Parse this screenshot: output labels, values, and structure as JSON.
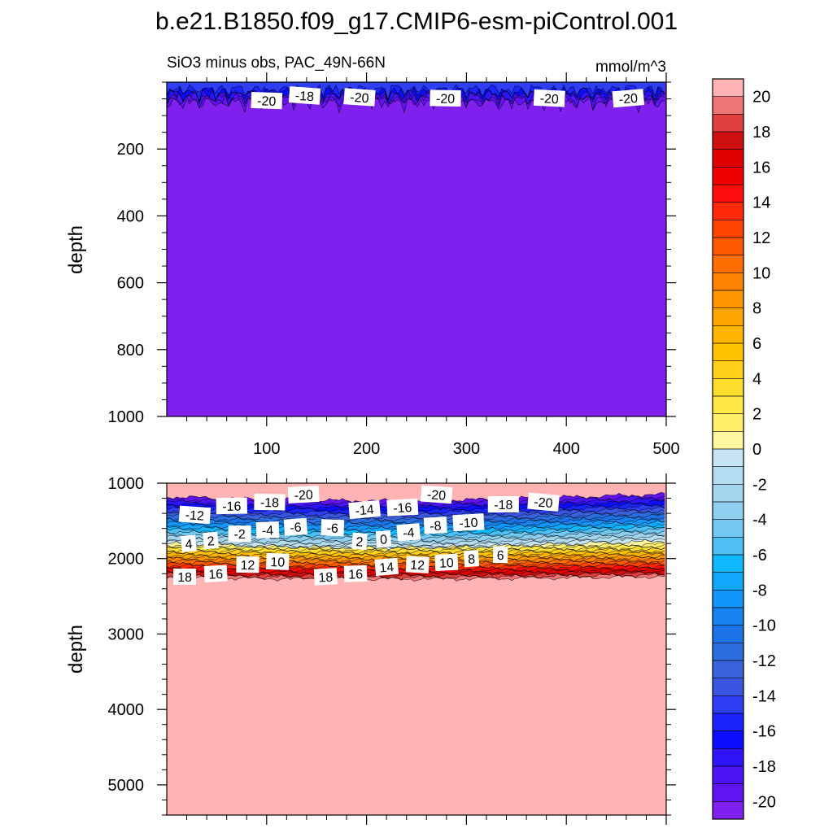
{
  "title": "b.e21.B1850.f09_g17.CMIP6-esm-piControl.001",
  "subtitle_left": "SiO3 minus obs, PAC_49N-66N",
  "subtitle_right": "mmol/m^3",
  "colors": {
    "background": "#ffffff",
    "axis": "#000000",
    "frame": "#000000",
    "contour_line": "#000000",
    "label_box": "#ffffff"
  },
  "colorbar": {
    "labels": [
      "20",
      "18",
      "16",
      "14",
      "12",
      "10",
      "8",
      "6",
      "4",
      "2",
      "0",
      "-2",
      "-4",
      "-6",
      "-8",
      "-10",
      "-12",
      "-14",
      "-16",
      "-18",
      "-20"
    ],
    "levels_top_to_bottom": [
      ">20",
      "19",
      "18",
      "17",
      "16",
      "15",
      "14",
      "13",
      "12",
      "11",
      "10",
      "9",
      "8",
      "7",
      "6",
      "5",
      "4",
      "3",
      "2",
      "1",
      "0",
      "-1",
      "-2",
      "-3",
      "-4",
      "-5",
      "-6",
      "-7",
      "-8",
      "-9",
      "-10",
      "-11",
      "-12",
      "-13",
      "-14",
      "-15",
      "-16",
      "-17",
      "-18",
      "-19",
      "-20",
      "<-20"
    ],
    "colors_top_to_bottom": [
      "#ffb3b3",
      "#f07575",
      "#e04040",
      "#d01010",
      "#e00000",
      "#f00000",
      "#ff0d0d",
      "#ff2a0a",
      "#ff4400",
      "#ff5a00",
      "#ff6e00",
      "#ff8200",
      "#ff9500",
      "#ffa500",
      "#ffb400",
      "#ffc200",
      "#ffcf1a",
      "#ffdd2e",
      "#ffe848",
      "#ffef66",
      "#fff6a0",
      "#c6e4f4",
      "#b2dcf0",
      "#a3d5ee",
      "#8fd0f0",
      "#72c8f2",
      "#4ebff5",
      "#12b8fc",
      "#10a8fc",
      "#1296fa",
      "#1784f2",
      "#1c73e8",
      "#2a6ee0",
      "#3a62dc",
      "#3a56e0",
      "#2d3ff0",
      "#1a24fb",
      "#0c0cff",
      "#2e14fa",
      "#4a14f5",
      "#6214f0",
      "#8020ee"
    ]
  },
  "chart_data": [
    {
      "type": "contour",
      "panel": "upper",
      "xlabel": "",
      "ylabel": "depth",
      "xlim": [
        0,
        500
      ],
      "ylim": [
        1000,
        0
      ],
      "x_tick_labels": [
        "100",
        "200",
        "300",
        "400",
        "500"
      ],
      "x_ticks": [
        100,
        200,
        300,
        400,
        500
      ],
      "y_tick_labels": [
        "200",
        "400",
        "600",
        "800",
        "1000"
      ],
      "y_ticks": [
        200,
        400,
        600,
        800,
        1000
      ],
      "fill_value_below_40m": "< -20",
      "contour_labels": [
        {
          "text": "-20",
          "x": 100,
          "depth": 55
        },
        {
          "text": "-18",
          "x": 138,
          "depth": 40
        },
        {
          "text": "-20",
          "x": 193,
          "depth": 45
        },
        {
          "text": "-20",
          "x": 279,
          "depth": 48
        },
        {
          "text": "-20",
          "x": 383,
          "depth": 48
        },
        {
          "text": "-20",
          "x": 462,
          "depth": 48
        }
      ]
    },
    {
      "type": "contour",
      "panel": "lower",
      "xlabel": "",
      "ylabel": "depth",
      "xlim": [
        0,
        500
      ],
      "ylim": [
        5400,
        1000
      ],
      "y_tick_labels": [
        "1000",
        "2000",
        "3000",
        "4000",
        "5000"
      ],
      "y_ticks": [
        1000,
        2000,
        3000,
        4000,
        5000
      ],
      "bands_depth": {
        "minus20": 1180,
        "zero": 1800,
        "plus20": 2250
      },
      "contour_labels": [
        {
          "text": "-20",
          "x": 137,
          "depth": 1150
        },
        {
          "text": "-18",
          "x": 103,
          "depth": 1250
        },
        {
          "text": "-16",
          "x": 65,
          "depth": 1300
        },
        {
          "text": "-12",
          "x": 28,
          "depth": 1420
        },
        {
          "text": "-20",
          "x": 270,
          "depth": 1150
        },
        {
          "text": "-14",
          "x": 198,
          "depth": 1350
        },
        {
          "text": "-16",
          "x": 236,
          "depth": 1320
        },
        {
          "text": "-18",
          "x": 337,
          "depth": 1280
        },
        {
          "text": "-20",
          "x": 377,
          "depth": 1250
        },
        {
          "text": "-10",
          "x": 302,
          "depth": 1520
        },
        {
          "text": "-8",
          "x": 269,
          "depth": 1560
        },
        {
          "text": "-6",
          "x": 129,
          "depth": 1580
        },
        {
          "text": "-6",
          "x": 166,
          "depth": 1590
        },
        {
          "text": "-4",
          "x": 101,
          "depth": 1620
        },
        {
          "text": "-4",
          "x": 242,
          "depth": 1650
        },
        {
          "text": "-2",
          "x": 73,
          "depth": 1670
        },
        {
          "text": "2",
          "x": 44,
          "depth": 1760
        },
        {
          "text": "4",
          "x": 22,
          "depth": 1800
        },
        {
          "text": "2",
          "x": 193,
          "depth": 1770
        },
        {
          "text": "0",
          "x": 217,
          "depth": 1740
        },
        {
          "text": "12",
          "x": 81,
          "depth": 2080
        },
        {
          "text": "10",
          "x": 111,
          "depth": 2040
        },
        {
          "text": "14",
          "x": 220,
          "depth": 2110
        },
        {
          "text": "12",
          "x": 251,
          "depth": 2080
        },
        {
          "text": "10",
          "x": 280,
          "depth": 2050
        },
        {
          "text": "8",
          "x": 305,
          "depth": 2000
        },
        {
          "text": "6",
          "x": 334,
          "depth": 1950
        },
        {
          "text": "18",
          "x": 18,
          "depth": 2240
        },
        {
          "text": "16",
          "x": 49,
          "depth": 2200
        },
        {
          "text": "18",
          "x": 159,
          "depth": 2240
        },
        {
          "text": "16",
          "x": 189,
          "depth": 2200
        }
      ]
    }
  ]
}
